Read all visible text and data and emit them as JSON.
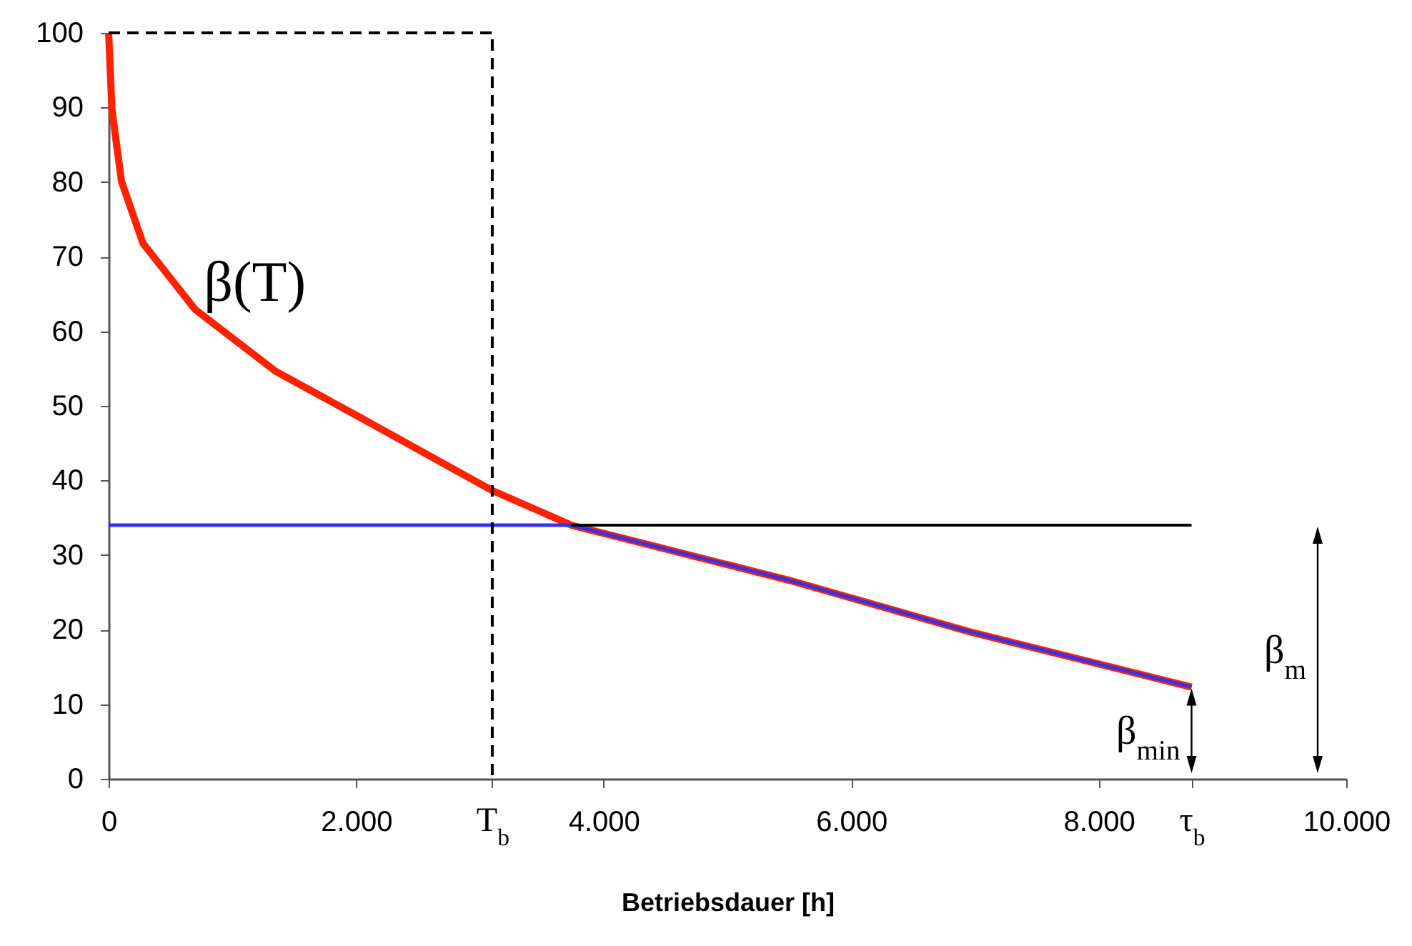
{
  "chart_data": {
    "type": "line",
    "xlabel": "Betriebsdauer  [h]",
    "xlim": [
      0,
      10000
    ],
    "ylim": [
      0,
      100
    ],
    "xticks": [
      0,
      {
        "value": 2000,
        "label": "2.000"
      },
      {
        "value": 3100,
        "label": "T$_{b}$"
      },
      {
        "value": 4000,
        "label": "4.000"
      },
      {
        "value": 6000,
        "label": "6.000"
      },
      {
        "value": 8000,
        "label": "8.000"
      },
      {
        "value": 8750,
        "label": "τ$_{b}$"
      },
      {
        "value": 10000,
        "label": "10.000"
      }
    ],
    "yticks": [
      0,
      10,
      20,
      30,
      40,
      50,
      60,
      70,
      80,
      90,
      100
    ],
    "grid": false,
    "series": [
      {
        "name": "β(T)",
        "color": "#ff2200",
        "x": [
          0,
          27,
          104,
          277,
          700,
          1352,
          2125,
          3106,
          3740,
          5502,
          6960,
          8750
        ],
        "values": [
          100,
          89.7,
          80.1,
          71.8,
          62.9,
          54.6,
          47.6,
          38.6,
          34,
          26.6,
          19.7,
          12.3
        ]
      },
      {
        "color": "#3333ee",
        "x": [
          0,
          3740,
          5502,
          6960,
          8750
        ],
        "values": [
          34,
          34,
          26.6,
          19.7,
          12.3
        ]
      },
      {
        "color": "#000000",
        "x": [
          3740,
          8750
        ],
        "values": [
          34,
          34
        ]
      },
      {
        "color": "#000000",
        "line_style": "dashed",
        "x": [
          0,
          3100,
          3100
        ],
        "values": [
          100,
          100,
          0
        ]
      }
    ],
    "annotations": [
      {
        "text": "β$_{min}$",
        "x": 8750,
        "y": 12.3
      },
      "β$_{m}$"
    ]
  }
}
